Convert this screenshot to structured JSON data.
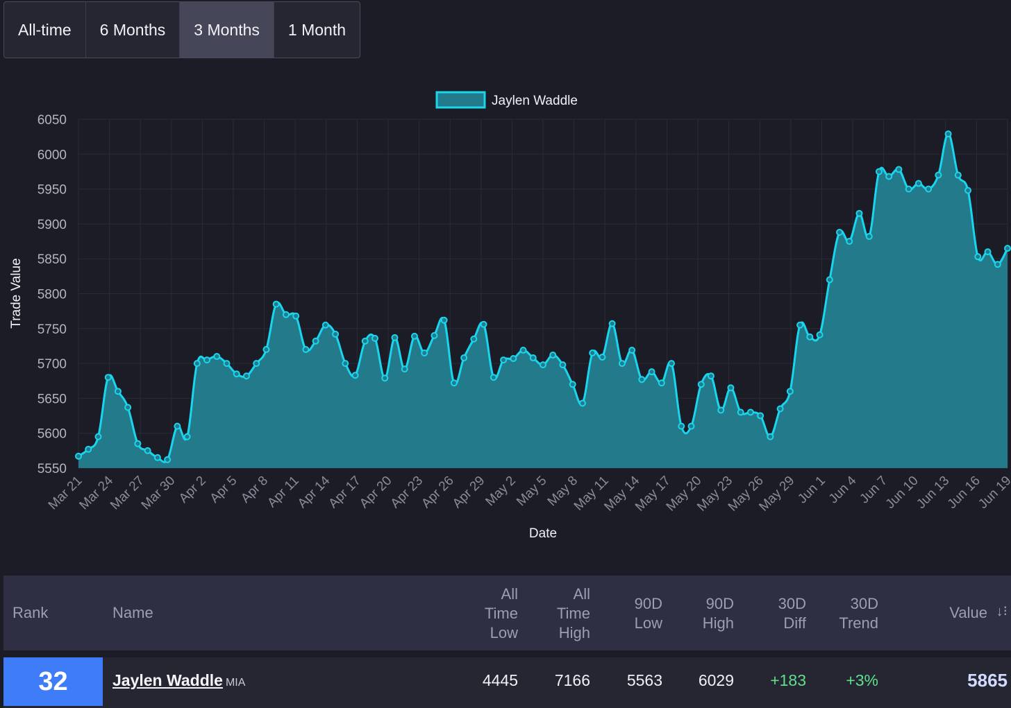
{
  "tabs": [
    {
      "label": "All-time",
      "active": false
    },
    {
      "label": "6 Months",
      "active": false
    },
    {
      "label": "3 Months",
      "active": true
    },
    {
      "label": "1 Month",
      "active": false
    }
  ],
  "colors": {
    "line": "#1ad5ee",
    "fill": "#237a8a",
    "rank_bg": "#3f7cf8",
    "positive": "#5fe08a"
  },
  "chart_data": {
    "type": "area",
    "series": [
      {
        "name": "Jaylen Waddle",
        "values": [
          5567,
          5577,
          5595,
          5680,
          5660,
          5637,
          5585,
          5575,
          5565,
          5562,
          5610,
          5595,
          5700,
          5705,
          5710,
          5700,
          5685,
          5682,
          5700,
          5720,
          5785,
          5770,
          5768,
          5720,
          5732,
          5755,
          5742,
          5700,
          5683,
          5732,
          5736,
          5679,
          5737,
          5692,
          5739,
          5715,
          5740,
          5762,
          5672,
          5708,
          5735,
          5756,
          5680,
          5705,
          5707,
          5719,
          5708,
          5698,
          5712,
          5698,
          5670,
          5643,
          5715,
          5709,
          5757,
          5700,
          5719,
          5677,
          5688,
          5672,
          5700,
          5610,
          5610,
          5670,
          5682,
          5633,
          5665,
          5630,
          5630,
          5625,
          5595,
          5635,
          5660,
          5755,
          5738,
          5741,
          5820,
          5888,
          5875,
          5915,
          5882,
          5975,
          5968,
          5978,
          5950,
          5958,
          5950,
          5970,
          6029,
          5970,
          5948,
          5853,
          5860,
          5842,
          5865
        ]
      }
    ],
    "x_start": "Mar 21",
    "x_end": "Jun 19",
    "x_tick_labels": [
      "Mar 21",
      "Mar 24",
      "Mar 27",
      "Mar 30",
      "Apr 2",
      "Apr 5",
      "Apr 8",
      "Apr 11",
      "Apr 14",
      "Apr 17",
      "Apr 20",
      "Apr 23",
      "Apr 26",
      "Apr 29",
      "May 2",
      "May 5",
      "May 8",
      "May 11",
      "May 14",
      "May 17",
      "May 20",
      "May 23",
      "May 26",
      "May 29",
      "Jun 1",
      "Jun 4",
      "Jun 7",
      "Jun 10",
      "Jun 13",
      "Jun 16",
      "Jun 19"
    ],
    "y_ticks": [
      6050,
      6000,
      5950,
      5900,
      5850,
      5800,
      5750,
      5700,
      5650,
      5600,
      5550
    ],
    "ylim": [
      5550,
      6050
    ],
    "xlabel": "Date",
    "ylabel": "Trade Value",
    "legend": "top-center",
    "grid": true
  },
  "table": {
    "headers": {
      "rank": "Rank",
      "name": "Name",
      "all_time_low": "All\nTime\nLow",
      "all_time_high": "All\nTime\nHigh",
      "low_90d": "90D\nLow",
      "high_90d": "90D\nHigh",
      "diff_30d": "30D\nDiff",
      "trend_30d": "30D\nTrend",
      "value": "Value",
      "sort_icon": "sort-desc-icon"
    },
    "row": {
      "rank": "32",
      "name": "Jaylen Waddle",
      "team": "MIA",
      "all_time_low": "4445",
      "all_time_high": "7166",
      "low_90d": "5563",
      "high_90d": "6029",
      "diff_30d": "+183",
      "trend_30d": "+3%",
      "value": "5865"
    }
  }
}
